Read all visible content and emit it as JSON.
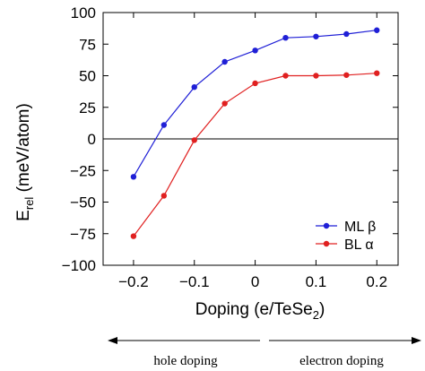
{
  "chart_data": {
    "type": "line",
    "xlabel": "Doping (e/TeSe",
    "xlabel_sub": "2",
    "xlabel_tail": ")",
    "ylabel": "E",
    "ylabel_sub": "rel",
    "ylabel_tail": " (meV/atom)",
    "xlim": [
      -0.25,
      0.235
    ],
    "ylim": [
      -100,
      100
    ],
    "xticks": [
      -0.2,
      -0.1,
      0,
      0.1,
      0.2
    ],
    "xtick_labels": [
      "−0.2",
      "−0.1",
      "0",
      "0.1",
      "0.2"
    ],
    "yticks": [
      100,
      75,
      50,
      25,
      0,
      -25,
      -50,
      -75,
      -100
    ],
    "ytick_labels": [
      "100",
      "75",
      "50",
      "25",
      "0",
      "−25",
      "−50",
      "−75",
      "−100"
    ],
    "zero_line": true,
    "legend_position": "lower-right",
    "series": [
      {
        "name": "ML β",
        "color": "#1f1fd6",
        "x": [
          -0.2,
          -0.15,
          -0.1,
          -0.05,
          0,
          0.05,
          0.1,
          0.15,
          0.2
        ],
        "y": [
          -30,
          11,
          41,
          61,
          70,
          80,
          81,
          83,
          86
        ]
      },
      {
        "name": "BL α",
        "color": "#e02020",
        "x": [
          -0.2,
          -0.15,
          -0.1,
          -0.05,
          0,
          0.05,
          0.1,
          0.15,
          0.2
        ],
        "y": [
          -77,
          -45,
          -1,
          28,
          44,
          50,
          50,
          50.5,
          52
        ]
      }
    ]
  },
  "annotations": {
    "hole_doping": "hole doping",
    "electron_doping": "electron doping"
  }
}
